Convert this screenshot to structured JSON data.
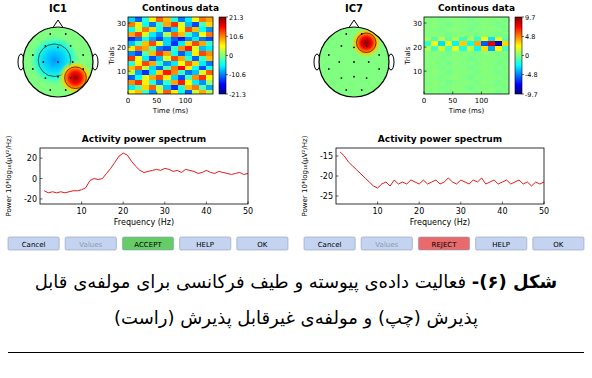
{
  "panels": [
    {
      "title": "IC1",
      "topoplot": {
        "sources": [
          {
            "x": -0.1,
            "y": 0.05,
            "value": -0.45,
            "radius": 0.75
          },
          {
            "x": 0.5,
            "y": -0.45,
            "value": 0.95,
            "radius": 0.5
          }
        ]
      },
      "buttons": [
        {
          "label": "Cancel"
        },
        {
          "label": "Values",
          "enabled": false
        },
        {
          "label": "ACCEPT",
          "color": "#66cc66"
        },
        {
          "label": "HELP"
        },
        {
          "label": "OK"
        }
      ]
    },
    {
      "title": "IC7",
      "topoplot": {
        "sources": [
          {
            "x": 0.35,
            "y": 0.55,
            "value": 1,
            "radius": 0.45
          }
        ]
      },
      "buttons": [
        {
          "label": "Cancel"
        },
        {
          "label": "Values",
          "enabled": false
        },
        {
          "label": "REJECT",
          "color": "#e86a6a"
        },
        {
          "label": "HELP"
        },
        {
          "label": "OK"
        }
      ]
    }
  ],
  "chart_data": [
    {
      "type": "heatmap",
      "title": "Continous data",
      "x_label": "Time (ms)",
      "y_label": "Trials",
      "xlim": [
        0,
        148
      ],
      "xticks": [
        0,
        50,
        100
      ],
      "ylim": [
        0.5,
        32.5
      ],
      "yticks": [
        10,
        20,
        30
      ],
      "color_range": [
        -21.3,
        21.3
      ],
      "color_ticks": [
        21.3,
        10.6,
        0,
        -10.6,
        -21.3
      ],
      "cells": [
        [
          5,
          8,
          -3,
          -10,
          4,
          12,
          6,
          -5,
          -12,
          3,
          9,
          2
        ],
        [
          -6,
          -2,
          7,
          12,
          3,
          -8,
          -14,
          -4,
          8,
          11,
          -2,
          -9
        ],
        [
          10,
          14,
          6,
          -4,
          -11,
          -3,
          9,
          15,
          5,
          -6,
          -10,
          1
        ],
        [
          -12,
          -5,
          4,
          9,
          13,
          6,
          -7,
          -13,
          -2,
          10,
          14,
          5
        ],
        [
          3,
          -9,
          -14,
          -6,
          7,
          15,
          10,
          -3,
          -11,
          -8,
          4,
          12
        ],
        [
          8,
          12,
          3,
          -7,
          -12,
          -2,
          11,
          16,
          6,
          -5,
          -13,
          -4
        ],
        [
          -4,
          6,
          13,
          9,
          -3,
          -10,
          -6,
          5,
          12,
          7,
          -6,
          -11
        ],
        [
          14,
          5,
          -6,
          -13,
          -8,
          4,
          13,
          9,
          -4,
          -12,
          -3,
          8
        ],
        [
          -10,
          -13,
          -2,
          8,
          14,
          9,
          -5,
          -12,
          -7,
          6,
          13,
          10
        ],
        [
          6,
          11,
          9,
          -2,
          -11,
          -13,
          -3,
          10,
          15,
          4,
          -8,
          -6
        ],
        [
          -8,
          -2,
          8,
          13,
          5,
          -7,
          -14,
          -6,
          7,
          13,
          9,
          -3
        ],
        [
          -14,
          -11,
          -5,
          -9,
          -13,
          -7,
          -12,
          -15,
          -10,
          -6,
          -11,
          -13
        ],
        [
          9,
          13,
          4,
          -6,
          -10,
          2,
          12,
          8,
          -3,
          -9,
          5,
          11
        ],
        [
          -5,
          3,
          11,
          7,
          -4,
          -12,
          -7,
          6,
          13,
          8,
          -5,
          -10
        ],
        [
          11,
          6,
          -5,
          -11,
          -3,
          9,
          14,
          4,
          -8,
          -13,
          -2,
          7
        ],
        [
          -7,
          -12,
          -4,
          6,
          12,
          8,
          -4,
          -11,
          -6,
          5,
          11,
          9
        ]
      ]
    },
    {
      "type": "line",
      "title": "Activity power spectrum",
      "x_label": "Frequency (Hz)",
      "y_label": "Power 10*log₁₀(μV²/Hz)",
      "color": "#e8171b",
      "xlim": [
        0,
        50
      ],
      "xticks": [
        10,
        20,
        30,
        40,
        50
      ],
      "ylim": [
        -25,
        30
      ],
      "yticks": [
        -20,
        0,
        20
      ],
      "x": [
        1,
        2,
        3,
        4,
        5,
        6,
        7,
        8,
        9,
        10,
        11,
        12,
        13,
        14,
        15,
        16,
        17,
        18,
        19,
        20,
        21,
        22,
        23,
        24,
        25,
        26,
        27,
        28,
        29,
        30,
        31,
        32,
        33,
        34,
        35,
        36,
        37,
        38,
        39,
        40,
        41,
        42,
        43,
        44,
        45,
        46,
        47,
        48,
        49,
        50
      ],
      "values": [
        -12,
        -14,
        -13,
        -14,
        -13,
        -14,
        -13,
        -12,
        -12,
        -11,
        -9,
        -2,
        0,
        -1,
        0,
        5,
        10,
        16,
        22,
        25,
        23,
        17,
        12,
        8,
        6,
        7,
        8,
        9,
        8,
        10,
        9,
        7,
        8,
        6,
        9,
        8,
        7,
        5,
        6,
        8,
        6,
        5,
        7,
        6,
        5,
        4,
        5,
        6,
        4,
        5
      ]
    },
    {
      "type": "heatmap",
      "title": "Continous data",
      "x_label": "Time (ms)",
      "y_label": "Trials",
      "xlim": [
        0,
        148
      ],
      "xticks": [
        0,
        50,
        100
      ],
      "ylim": [
        0.5,
        32.5
      ],
      "yticks": [
        10,
        20,
        30
      ],
      "color_range": [
        -9.7,
        9.7
      ],
      "color_ticks": [
        9.7,
        4.8,
        0,
        -4.8,
        -9.7
      ],
      "cells": [
        [
          0,
          0.2,
          0,
          -0.2,
          0,
          0.1,
          0,
          -0.1,
          0.2,
          0,
          -0.2,
          0
        ],
        [
          0.1,
          0,
          -0.1,
          0,
          0.2,
          0,
          -0.2,
          0,
          0,
          0.1,
          0,
          -0.1
        ],
        [
          0,
          0.2,
          0,
          -0.2,
          0,
          0.1,
          0,
          -0.1,
          0.2,
          0,
          -0.2,
          0
        ],
        [
          0.1,
          0,
          -0.1,
          0,
          0.2,
          0,
          -0.2,
          0,
          0,
          0.1,
          0,
          -0.1
        ],
        [
          0,
          0.2,
          0,
          -0.2,
          0,
          0.1,
          0,
          -0.1,
          0.2,
          0,
          -0.2,
          0
        ],
        [
          0.1,
          0,
          -0.1,
          0,
          0.2,
          0,
          -0.2,
          0,
          0,
          0.1,
          0,
          -0.1
        ],
        [
          0,
          0.2,
          0,
          -0.2,
          0,
          0.1,
          0,
          -0.1,
          0.2,
          0,
          -0.2,
          0
        ],
        [
          0.1,
          0,
          -0.1,
          0,
          0.2,
          0,
          -0.2,
          0,
          0,
          0.1,
          0,
          -0.1
        ],
        [
          0,
          0.2,
          0,
          -0.2,
          0,
          0.1,
          0,
          -0.1,
          0.2,
          0,
          -0.2,
          0
        ],
        [
          0.8,
          -1.2,
          1.5,
          -0.9,
          2.1,
          -1.8,
          1.2,
          -2.4,
          3.1,
          -4.2,
          2.6,
          -1.1
        ],
        [
          -1.5,
          2.2,
          -3,
          1.8,
          -2.6,
          3.4,
          -2.1,
          4,
          -5.6,
          7.8,
          -8.5,
          3.2
        ],
        [
          0.6,
          -0.8,
          1.1,
          -0.5,
          0.9,
          -1.3,
          0.7,
          -1.6,
          2.2,
          -2.9,
          1.8,
          -0.7
        ],
        [
          0,
          0.2,
          0,
          -0.2,
          0,
          0.1,
          0,
          -0.1,
          0.2,
          0,
          -0.2,
          0
        ],
        [
          0.1,
          0,
          -0.1,
          0,
          0.2,
          0,
          -0.2,
          0,
          0,
          0.1,
          0,
          -0.1
        ],
        [
          0,
          0.2,
          0,
          -0.2,
          0,
          0.1,
          0,
          -0.1,
          0.2,
          0,
          -0.2,
          0
        ],
        [
          0.1,
          0,
          -0.1,
          0,
          0.2,
          0,
          -0.2,
          0,
          0,
          0.1,
          0,
          -0.1
        ]
      ]
    },
    {
      "type": "line",
      "title": "Activity power spectrum",
      "x_label": "Frequency (Hz)",
      "y_label": "Power 10*log₁₀(μV²/Hz)",
      "color": "#e8171b",
      "xlim": [
        0,
        50
      ],
      "xticks": [
        10,
        20,
        30,
        40,
        50
      ],
      "ylim": [
        -27,
        -13
      ],
      "yticks": [
        -25,
        -20,
        -15
      ],
      "x": [
        1,
        2,
        3,
        4,
        5,
        6,
        7,
        8,
        9,
        10,
        11,
        12,
        13,
        14,
        15,
        16,
        17,
        18,
        19,
        20,
        21,
        22,
        23,
        24,
        25,
        26,
        27,
        28,
        29,
        30,
        31,
        32,
        33,
        34,
        35,
        36,
        37,
        38,
        39,
        40,
        41,
        42,
        43,
        44,
        45,
        46,
        47,
        48,
        49,
        50
      ],
      "values": [
        -14,
        -15,
        -16.5,
        -17.5,
        -18.5,
        -19.5,
        -20.5,
        -21.5,
        -22.5,
        -23,
        -22,
        -21.5,
        -22.5,
        -21,
        -22,
        -21.5,
        -22,
        -21,
        -21.5,
        -22,
        -21,
        -22,
        -21.5,
        -21,
        -22,
        -21.5,
        -20.5,
        -21.5,
        -22,
        -21,
        -21.5,
        -22,
        -21,
        -21.5,
        -20.5,
        -22,
        -21.5,
        -21,
        -22,
        -21.5,
        -21,
        -22,
        -21.5,
        -21,
        -22,
        -21.5,
        -22.5,
        -21.5,
        -22,
        -21.5
      ]
    }
  ],
  "caption": {
    "label": "شکل (۶)-",
    "text": "فعالیت داده‌ی پیوسته و طیف فرکانسی برای مولفه‌ی قابل پذیرش (چپ) و مولفه‌ی غیرقابل پذیرش (راست)"
  }
}
